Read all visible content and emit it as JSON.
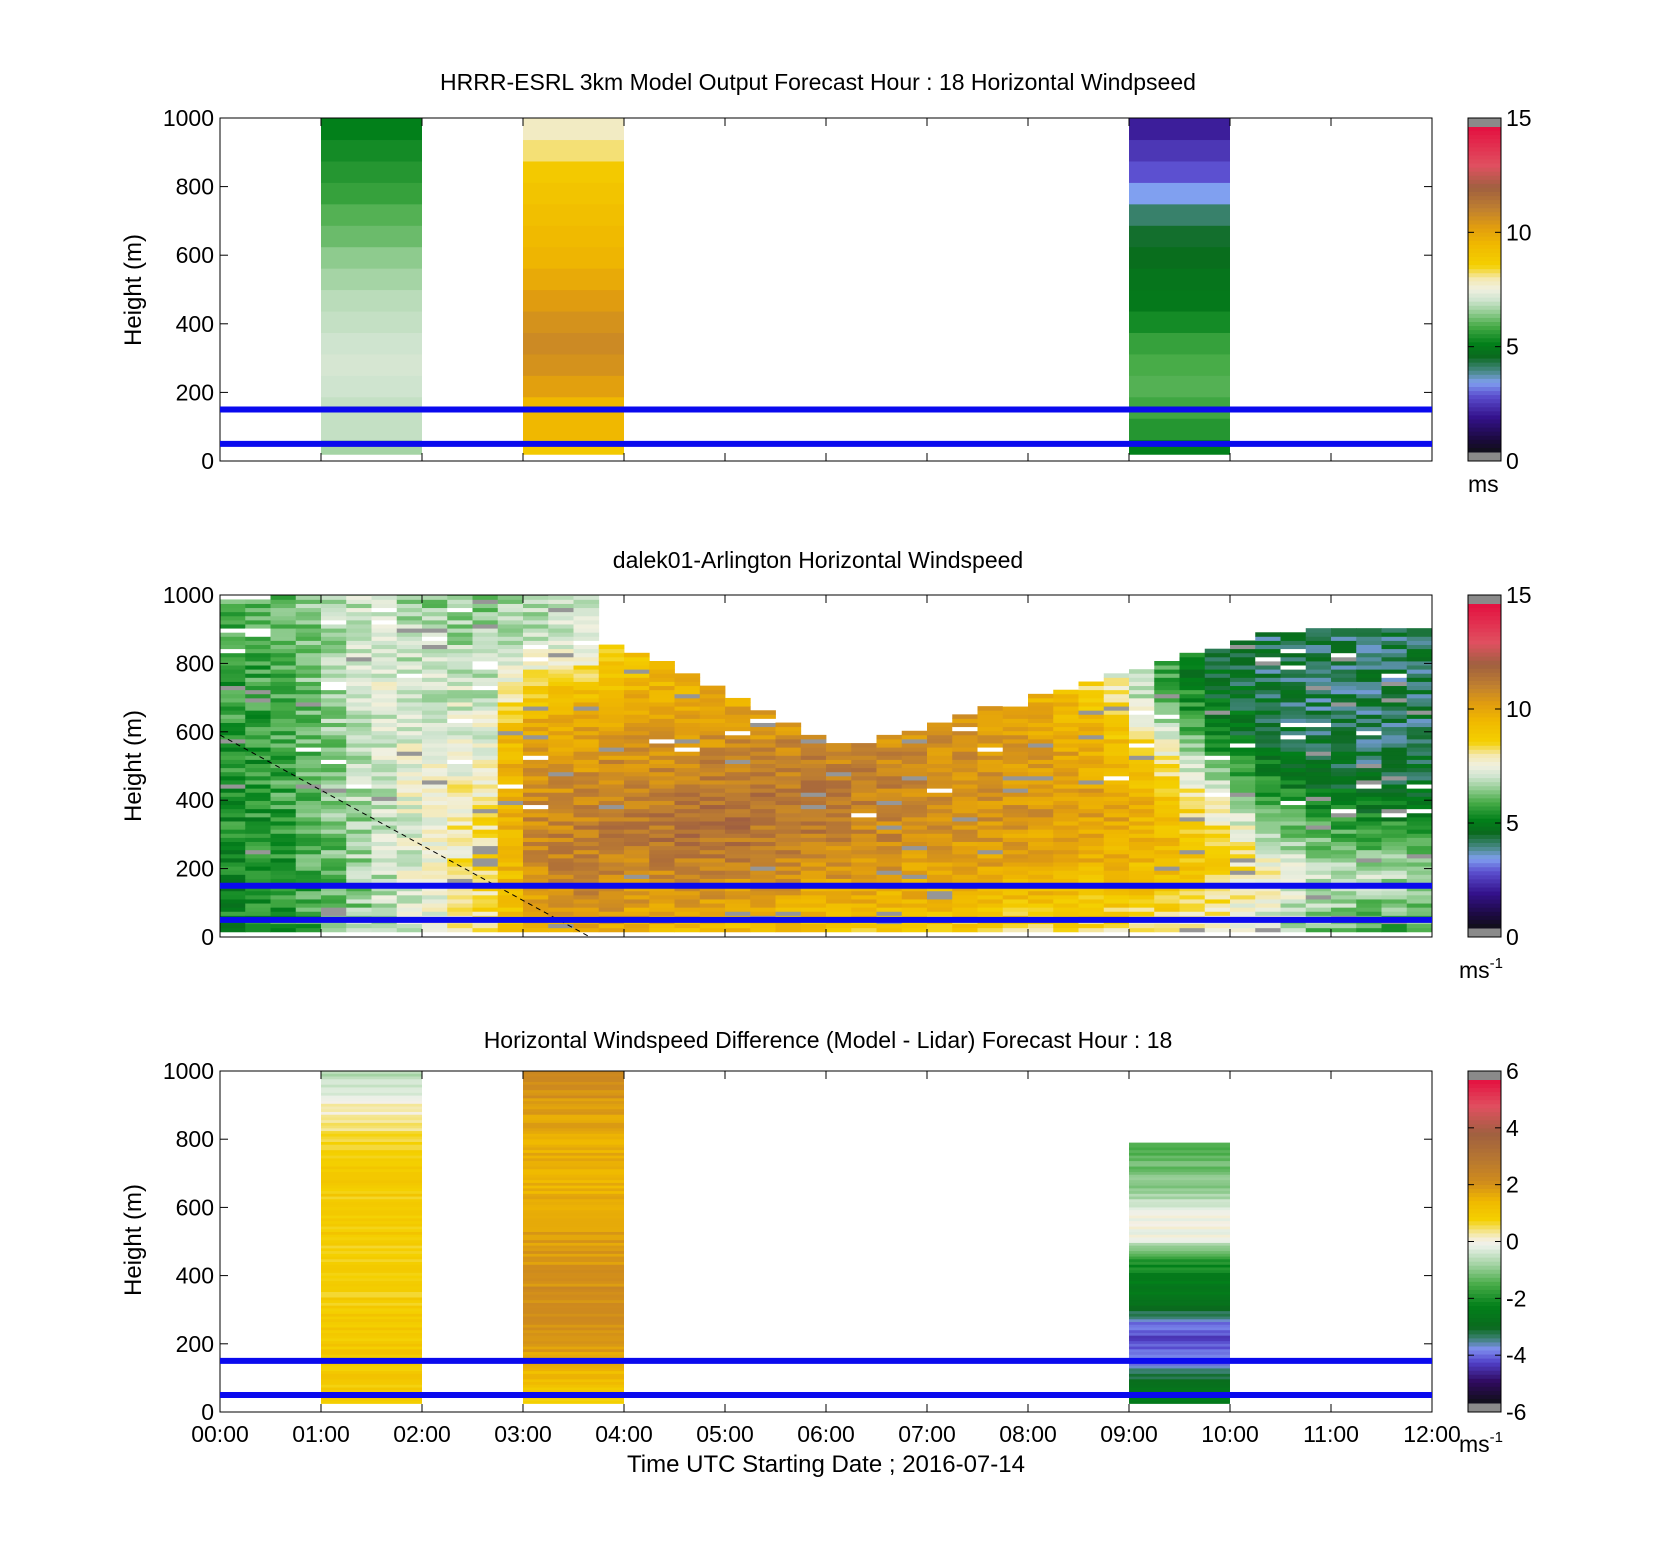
{
  "figure": {
    "xlabel": "Time UTC  Starting Date ; 2016-07-14",
    "x_tick_labels": [
      "00:00",
      "01:00",
      "02:00",
      "03:00",
      "04:00",
      "05:00",
      "06:00",
      "07:00",
      "08:00",
      "09:00",
      "10:00",
      "11:00",
      "12:00"
    ]
  },
  "chart_data": [
    {
      "type": "heatmap",
      "title": "HRRR-ESRL 3km Model Output   Forecast Hour : 18 Horizontal Windpseed",
      "ylabel": "Height (m)",
      "xlim": [
        0,
        12
      ],
      "ylim": [
        0,
        1000
      ],
      "y_ticks": [
        0,
        200,
        400,
        600,
        800,
        1000
      ],
      "colorbar": {
        "ticks": [
          0,
          5,
          10,
          15
        ],
        "range": [
          0,
          15
        ],
        "unit": "ms",
        "unit_sup": ""
      },
      "reference_lines_m": [
        50,
        150
      ],
      "model_columns": [
        {
          "t_start": 1.0,
          "t_end": 2.0,
          "speeds": [
            6.6,
            6.9,
            6.9,
            7.0,
            7.1,
            7.0,
            6.9,
            6.8,
            6.6,
            6.4,
            6.1,
            5.9,
            5.6,
            5.4,
            5.2,
            5.0
          ]
        },
        {
          "t_start": 3.0,
          "t_end": 4.0,
          "speeds": [
            8.9,
            9.6,
            9.6,
            10.3,
            10.7,
            10.9,
            10.7,
            10.4,
            10.0,
            9.7,
            9.5,
            9.3,
            9.1,
            8.9,
            8.2,
            7.8
          ]
        },
        {
          "t_start": 9.0,
          "t_end": 10.0,
          "speeds": [
            5.0,
            5.4,
            5.7,
            5.9,
            5.8,
            5.6,
            5.2,
            4.8,
            4.7,
            4.5,
            4.3,
            3.9,
            3.2,
            2.6,
            2.2,
            1.8
          ]
        }
      ]
    },
    {
      "type": "heatmap",
      "title": "dalek01-Arlington  Horizontal Windspeed",
      "ylabel": "Height (m)",
      "xlim": [
        0,
        12
      ],
      "ylim": [
        0,
        1000
      ],
      "y_ticks": [
        0,
        200,
        400,
        600,
        800,
        1000
      ],
      "colorbar": {
        "ticks": [
          0,
          5,
          10,
          15
        ],
        "range": [
          0,
          15
        ],
        "unit": "ms",
        "unit_sup": "-1"
      },
      "reference_lines_m": [
        50,
        150
      ],
      "time_resolution_h": 0.25,
      "lidar_profiles": [
        {
          "top": 980,
          "base": [
            5.0,
            5.1,
            5.2,
            5.2,
            5.3,
            5.3,
            5.4,
            5.5,
            5.5,
            5.6,
            5.7,
            5.8
          ]
        },
        {
          "top": 985,
          "base": [
            5.2,
            5.2,
            5.3,
            5.4,
            5.4,
            5.5,
            5.5,
            5.6,
            5.7,
            5.7,
            5.8,
            5.9
          ]
        },
        {
          "top": 990,
          "base": [
            5.4,
            5.4,
            5.5,
            5.5,
            5.6,
            5.7,
            5.8,
            5.8,
            5.9,
            6.0,
            6.0,
            6.1
          ]
        },
        {
          "top": 1000,
          "base": [
            5.7,
            5.7,
            5.8,
            5.9,
            5.9,
            6.0,
            6.1,
            6.1,
            6.2,
            6.3,
            6.3,
            6.4
          ]
        },
        {
          "top": 1000,
          "base": [
            6.0,
            6.1,
            6.1,
            6.2,
            6.3,
            6.3,
            6.4,
            6.5,
            6.5,
            6.6,
            6.6,
            6.7
          ]
        },
        {
          "top": 1000,
          "base": [
            6.4,
            6.4,
            6.5,
            6.6,
            6.6,
            6.7,
            6.8,
            6.8,
            6.8,
            6.9,
            6.9,
            7.0
          ]
        },
        {
          "top": 1000,
          "base": [
            6.8,
            6.9,
            6.9,
            7.0,
            7.0,
            7.1,
            7.1,
            7.2,
            7.2,
            7.2,
            7.1,
            7.0
          ]
        },
        {
          "top": 1000,
          "base": [
            7.1,
            7.2,
            7.3,
            7.3,
            7.4,
            7.4,
            7.3,
            7.2,
            7.1,
            6.9,
            6.8,
            6.6
          ]
        },
        {
          "top": 1000,
          "base": [
            7.4,
            7.5,
            7.6,
            7.7,
            7.7,
            7.6,
            7.4,
            7.2,
            7.0,
            6.8,
            6.6,
            6.4
          ]
        },
        {
          "top": 1000,
          "base": [
            7.8,
            7.9,
            8.0,
            8.0,
            7.9,
            7.7,
            7.5,
            7.2,
            7.0,
            6.8,
            6.5,
            6.3
          ]
        },
        {
          "top": 1000,
          "base": [
            8.2,
            8.3,
            8.4,
            8.3,
            8.1,
            7.8,
            7.5,
            7.2,
            6.9,
            6.7,
            6.5,
            6.3
          ]
        },
        {
          "top": 1000,
          "base": [
            8.8,
            9.2,
            9.5,
            9.7,
            9.8,
            9.8,
            9.6,
            8.8,
            7.8,
            7.0,
            6.6,
            6.4
          ]
        },
        {
          "top": 1000,
          "base": [
            9.6,
            10.4,
            10.7,
            10.9,
            10.8,
            10.6,
            10.3,
            9.8,
            8.6,
            7.4,
            6.8,
            6.5
          ]
        },
        {
          "top": 1000,
          "base": [
            9.8,
            10.6,
            11.0,
            11.2,
            11.0,
            10.7,
            10.4,
            9.9,
            8.9,
            7.6,
            6.9,
            6.5
          ]
        },
        {
          "top": 1000,
          "base": [
            9.8,
            10.7,
            11.1,
            11.3,
            11.1,
            10.8,
            10.4,
            10.0,
            9.0,
            7.7,
            7.0,
            6.6
          ]
        },
        {
          "top": 850,
          "base": [
            9.7,
            10.6,
            11.1,
            11.4,
            11.3,
            11.0,
            10.6,
            10.1,
            9.3,
            8.6,
            7.6,
            7.0
          ]
        },
        {
          "top": 830,
          "base": [
            9.6,
            10.5,
            11.0,
            11.4,
            11.3,
            11.0,
            10.6,
            10.2,
            9.6,
            9.0,
            8.4,
            7.6
          ]
        },
        {
          "top": 800,
          "base": [
            9.5,
            10.4,
            11.0,
            11.5,
            11.4,
            11.1,
            10.7,
            10.2,
            9.8,
            9.2,
            8.6,
            7.8
          ]
        },
        {
          "top": 760,
          "base": [
            9.4,
            10.4,
            11.0,
            11.6,
            11.6,
            11.2,
            10.8,
            10.3,
            9.8,
            9.3,
            8.8,
            8.0
          ]
        },
        {
          "top": 730,
          "base": [
            9.3,
            10.3,
            11.0,
            11.6,
            11.7,
            11.3,
            10.8,
            10.3,
            9.9,
            9.4,
            8.9,
            8.2
          ]
        },
        {
          "top": 690,
          "base": [
            9.2,
            10.2,
            10.9,
            11.5,
            11.7,
            11.4,
            10.9,
            10.4,
            9.9,
            9.5,
            9.0,
            8.4
          ]
        },
        {
          "top": 660,
          "base": [
            9.1,
            10.1,
            10.8,
            11.4,
            11.6,
            11.4,
            10.9,
            10.4,
            9.9,
            9.5,
            9.0,
            8.5
          ]
        },
        {
          "top": 620,
          "base": [
            9.0,
            10.0,
            10.8,
            11.3,
            11.5,
            11.3,
            11.0,
            10.5,
            10.0,
            9.6,
            9.1,
            8.6
          ]
        },
        {
          "top": 580,
          "base": [
            8.9,
            9.9,
            10.7,
            11.2,
            11.4,
            11.3,
            11.0,
            10.6,
            10.1,
            9.7,
            9.2,
            8.7
          ]
        },
        {
          "top": 560,
          "base": [
            8.8,
            9.8,
            10.6,
            11.1,
            11.3,
            11.2,
            11.0,
            10.6,
            10.2,
            9.8,
            9.3,
            8.8
          ]
        },
        {
          "top": 560,
          "base": [
            8.8,
            9.8,
            10.5,
            11.0,
            11.2,
            11.2,
            11.0,
            10.7,
            10.3,
            9.8,
            9.3,
            8.8
          ]
        },
        {
          "top": 580,
          "base": [
            8.7,
            9.7,
            10.4,
            10.9,
            11.1,
            11.1,
            10.9,
            10.7,
            10.3,
            9.9,
            9.4,
            8.9
          ]
        },
        {
          "top": 600,
          "base": [
            8.7,
            9.6,
            10.3,
            10.8,
            11.0,
            11.0,
            10.9,
            10.6,
            10.3,
            9.9,
            9.4,
            8.9
          ]
        },
        {
          "top": 620,
          "base": [
            8.6,
            9.5,
            10.2,
            10.7,
            10.9,
            10.9,
            10.8,
            10.6,
            10.2,
            9.8,
            9.4,
            8.9
          ]
        },
        {
          "top": 650,
          "base": [
            8.6,
            9.4,
            10.1,
            10.6,
            10.8,
            10.8,
            10.7,
            10.5,
            10.1,
            9.7,
            9.3,
            8.8
          ]
        },
        {
          "top": 670,
          "base": [
            8.5,
            9.3,
            10.0,
            10.5,
            10.7,
            10.7,
            10.6,
            10.4,
            10.0,
            9.6,
            9.2,
            8.7
          ]
        },
        {
          "top": 680,
          "base": [
            8.4,
            9.2,
            9.9,
            10.4,
            10.6,
            10.6,
            10.5,
            10.2,
            9.9,
            9.5,
            9.0,
            8.5
          ]
        },
        {
          "top": 700,
          "base": [
            8.4,
            9.2,
            9.8,
            10.3,
            10.5,
            10.5,
            10.4,
            10.0,
            9.6,
            9.1,
            8.4,
            7.8
          ]
        },
        {
          "top": 720,
          "base": [
            8.3,
            9.1,
            9.7,
            10.2,
            10.4,
            10.4,
            10.2,
            9.8,
            9.2,
            8.5,
            7.8,
            7.2
          ]
        },
        {
          "top": 740,
          "base": [
            8.2,
            9.0,
            9.6,
            10.1,
            10.3,
            10.2,
            9.9,
            9.3,
            8.5,
            7.8,
            7.2,
            6.6
          ]
        },
        {
          "top": 760,
          "base": [
            8.1,
            8.9,
            9.5,
            10.0,
            10.1,
            9.9,
            9.4,
            8.6,
            7.8,
            7.1,
            6.5,
            6.0
          ]
        },
        {
          "top": 780,
          "base": [
            8.0,
            8.8,
            9.4,
            9.8,
            9.8,
            9.4,
            8.6,
            7.6,
            6.8,
            6.2,
            5.8,
            5.4
          ]
        },
        {
          "top": 800,
          "base": [
            7.8,
            8.6,
            9.2,
            9.5,
            9.3,
            8.6,
            7.5,
            6.5,
            5.8,
            5.4,
            5.1,
            4.9
          ]
        },
        {
          "top": 820,
          "base": [
            7.6,
            8.4,
            8.9,
            9.1,
            8.6,
            7.6,
            6.4,
            5.6,
            5.1,
            4.8,
            4.6,
            4.5
          ]
        },
        {
          "top": 840,
          "base": [
            7.3,
            8.1,
            8.6,
            8.6,
            7.8,
            6.6,
            5.5,
            4.9,
            4.6,
            4.5,
            4.4,
            4.3
          ]
        },
        {
          "top": 860,
          "base": [
            7.0,
            7.8,
            8.2,
            7.9,
            7.0,
            5.8,
            4.9,
            4.5,
            4.3,
            4.2,
            4.2,
            4.1
          ]
        },
        {
          "top": 880,
          "base": [
            6.7,
            7.4,
            7.8,
            7.2,
            6.2,
            5.2,
            4.6,
            4.3,
            4.1,
            4.0,
            4.0,
            4.0
          ]
        },
        {
          "top": 890,
          "base": [
            6.4,
            7.1,
            7.4,
            6.6,
            5.6,
            4.8,
            4.4,
            4.1,
            4.0,
            4.0,
            4.0,
            4.0
          ]
        },
        {
          "top": 900,
          "base": [
            6.1,
            6.8,
            7.1,
            6.2,
            5.2,
            4.5,
            4.2,
            4.0,
            4.0,
            4.0,
            4.0,
            4.0
          ]
        },
        {
          "top": 900,
          "base": [
            5.9,
            6.6,
            6.9,
            6.0,
            5.0,
            4.4,
            4.1,
            4.0,
            4.0,
            4.0,
            4.0,
            4.0
          ]
        },
        {
          "top": 900,
          "base": [
            5.8,
            6.4,
            6.8,
            5.9,
            4.9,
            4.3,
            4.0,
            4.0,
            4.0,
            4.0,
            4.0,
            4.0
          ]
        },
        {
          "top": 900,
          "base": [
            5.7,
            6.3,
            6.7,
            5.9,
            4.9,
            4.3,
            4.0,
            4.0,
            4.0,
            4.0,
            4.0,
            4.0
          ]
        },
        {
          "top": 900,
          "base": [
            5.7,
            6.3,
            6.7,
            5.8,
            4.8,
            4.2,
            4.0,
            4.0,
            4.0,
            4.0,
            4.0,
            4.0
          ]
        }
      ]
    },
    {
      "type": "heatmap",
      "title": "Horizontal Windspeed Difference (Model - Lidar) Forecast Hour : 18",
      "ylabel": "Height (m)",
      "xlim": [
        0,
        12
      ],
      "ylim": [
        0,
        1000
      ],
      "y_ticks": [
        0,
        200,
        400,
        600,
        800,
        1000
      ],
      "colorbar": {
        "ticks": [
          -6,
          -4,
          -2,
          0,
          2,
          4,
          6
        ],
        "range": [
          -6,
          6
        ],
        "unit": "ms",
        "unit_sup": "-1"
      },
      "reference_lines_m": [
        50,
        150
      ],
      "difference_columns": [
        {
          "t_start": 1.0,
          "t_end": 2.0,
          "top": 1000,
          "levels_m": [
            50,
            100,
            150,
            200,
            250,
            300,
            350,
            400,
            450,
            500,
            550,
            600,
            650,
            700,
            750,
            800,
            850,
            900,
            950,
            1000
          ],
          "diff": [
            1.0,
            1.0,
            0.9,
            1.0,
            1.0,
            0.9,
            0.8,
            0.8,
            0.9,
            0.9,
            1.0,
            0.9,
            0.9,
            0.9,
            0.8,
            0.6,
            0.3,
            0.1,
            -0.4,
            -0.8
          ]
        },
        {
          "t_start": 3.0,
          "t_end": 4.0,
          "top": 1000,
          "levels_m": [
            50,
            100,
            150,
            200,
            250,
            300,
            350,
            400,
            450,
            500,
            550,
            600,
            650,
            700,
            750,
            800,
            850,
            900,
            950,
            1000
          ],
          "diff": [
            1.0,
            1.4,
            1.6,
            2.0,
            2.1,
            2.2,
            2.2,
            2.1,
            2.0,
            1.9,
            1.8,
            1.7,
            1.6,
            1.6,
            1.6,
            1.7,
            1.8,
            2.0,
            2.1,
            2.3
          ]
        },
        {
          "t_start": 9.0,
          "t_end": 10.0,
          "top": 790,
          "levels_m": [
            50,
            100,
            150,
            200,
            250,
            300,
            350,
            400,
            450,
            500,
            550,
            600,
            650,
            700,
            750,
            790
          ],
          "diff": [
            -2.5,
            -3.4,
            -4.2,
            -4.5,
            -4.2,
            -3.3,
            -2.6,
            -2.4,
            -1.9,
            -0.2,
            0.1,
            -0.5,
            -1.0,
            -1.2,
            -1.5,
            -1.7
          ]
        }
      ]
    }
  ]
}
